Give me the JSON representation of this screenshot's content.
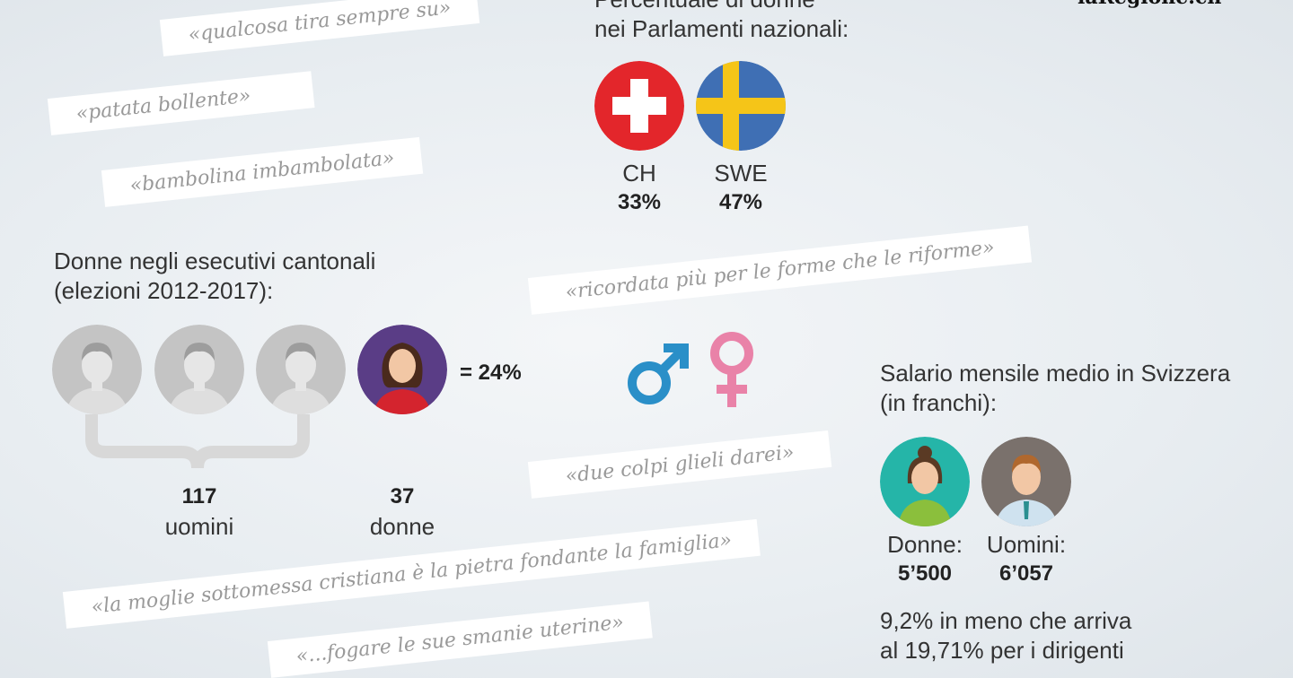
{
  "quotes": {
    "q1": "«qualcosa tira sempre su»",
    "q2": "«patata bollente»",
    "q3": "«bambolina imbambolata»",
    "q4": "«ricordata più per le forme che le riforme»",
    "q5": "«due colpi glieli darei»",
    "q6": "«la moglie sottomessa cristiana è la pietra fondante la famiglia»",
    "q7": "«...fogare le sue smanie uterine»"
  },
  "logo": "laRegione.ch",
  "parliament": {
    "title_line1": "Percentuale di donne",
    "title_line2": "nei Parlamenti nazionali:",
    "ch_label": "CH",
    "ch_value": "33%",
    "swe_label": "SWE",
    "swe_value": "47%"
  },
  "executives": {
    "title_line1": "Donne negli esecutivi cantonali",
    "title_line2": "(elezioni 2012-2017):",
    "ratio": "= 24%",
    "men_count": "117",
    "men_label": "uomini",
    "women_count": "37",
    "women_label": "donne"
  },
  "salary": {
    "title_line1": "Salario mensile medio in Svizzera",
    "title_line2": "(in franchi):",
    "women_label": "Donne:",
    "women_value": "5’500",
    "men_label": "Uomini:",
    "men_value": "6’057",
    "note_line1": "9,2% in meno che arriva",
    "note_line2": "al 19,71% per i dirigenti"
  },
  "colors": {
    "male_symbol": "#2a8fc8",
    "female_symbol": "#e982a8",
    "swiss_red": "#e3262b",
    "swedish_blue": "#3f6fb4",
    "swedish_yellow": "#f5c518"
  },
  "icons": [
    "man-avatar-icon",
    "woman-avatar-icon",
    "male-symbol-icon",
    "female-symbol-icon",
    "swiss-flag-icon",
    "swedish-flag-icon"
  ]
}
